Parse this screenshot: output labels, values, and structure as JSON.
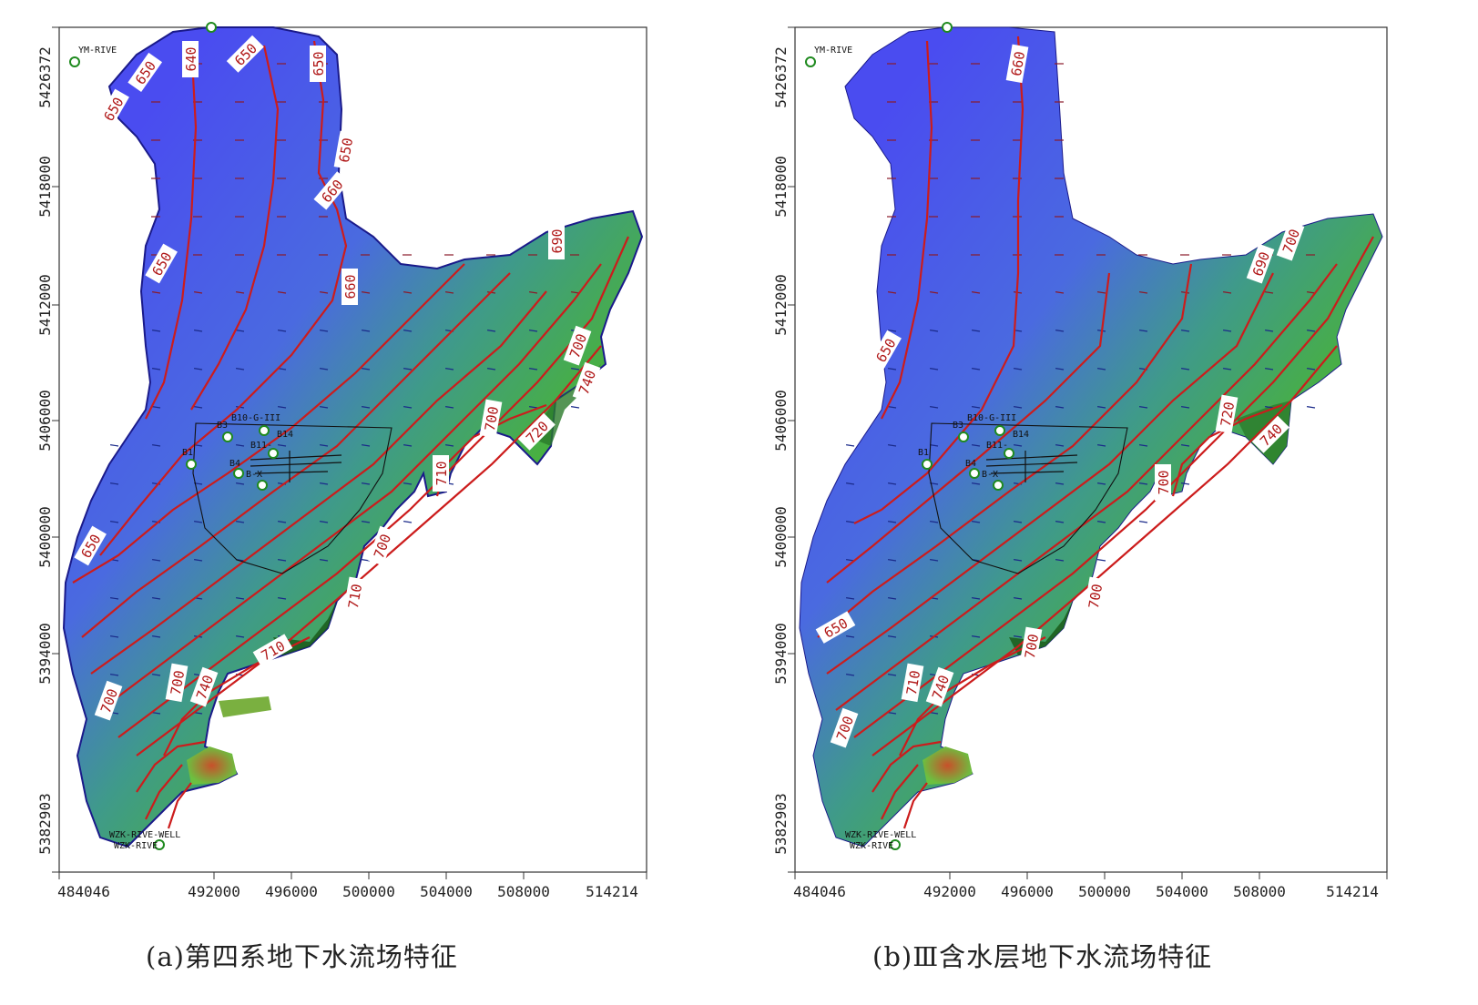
{
  "panels": [
    {
      "id": "a",
      "caption": "(a)第四系地下水流场特征",
      "x_ticks": [
        "484046",
        "492000",
        "496000",
        "500000",
        "504000",
        "508000",
        "514214"
      ],
      "y_ticks": [
        "5426372",
        "5418000",
        "5412000",
        "5406000",
        "5400000",
        "5394000",
        "5382903"
      ],
      "contour_labels": [
        "640",
        "650",
        "650",
        "650",
        "650",
        "650",
        "650",
        "660",
        "660",
        "650",
        "690",
        "700",
        "700",
        "710",
        "720",
        "740",
        "700",
        "710",
        "710",
        "700",
        "700",
        "740"
      ],
      "well_labels": [
        "YM-RIVE",
        "B10-G-III",
        "B3",
        "B14",
        "B11-",
        "B1",
        "B4",
        "B-X",
        "WZK-RIVE-WELL",
        "WZK-RIVE"
      ]
    },
    {
      "id": "b",
      "caption": "(b)Ⅲ含水层地下水流场特征",
      "x_ticks": [
        "484046",
        "492000",
        "496000",
        "500000",
        "504000",
        "508000",
        "514214"
      ],
      "y_ticks": [
        "5426372",
        "5418000",
        "5412000",
        "5406000",
        "5400000",
        "5394000",
        "5382903"
      ],
      "contour_labels": [
        "660",
        "650",
        "650",
        "690",
        "700",
        "700",
        "720",
        "740",
        "700",
        "700",
        "710",
        "700",
        "740"
      ],
      "well_labels": [
        "YM-RIVE",
        "B10-G-III",
        "B3",
        "B14",
        "B11-",
        "B1",
        "B4",
        "B-X",
        "WZK-RIVE-WELL",
        "WZK-RIVE"
      ]
    }
  ],
  "colors": {
    "low_head": "#4a4cf0",
    "mid_head": "#3f9a8a",
    "high_head": "#54c23c",
    "very_high_head": "#1a5a1a",
    "peak_head": "#c8642a",
    "contour": "#cc1c1c",
    "well": "#1f8a1f"
  }
}
